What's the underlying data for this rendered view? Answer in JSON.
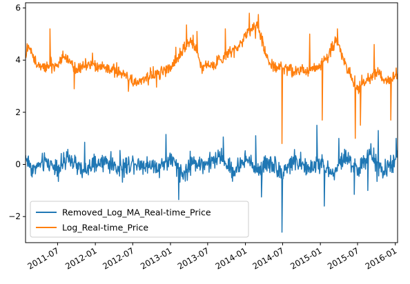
{
  "chart_data": {
    "type": "line",
    "title": "",
    "xlabel": "",
    "ylabel": "",
    "x_range": [
      "2011-01-26",
      "2016-01-12"
    ],
    "ylim": [
      -3.0,
      6.2
    ],
    "y_ticks": [
      -2,
      0,
      2,
      4,
      6
    ],
    "x_ticks": [
      "2011-07",
      "2012-01",
      "2012-07",
      "2013-01",
      "2013-07",
      "2014-01",
      "2014-07",
      "2015-01",
      "2015-07",
      "2016-01"
    ],
    "grid": false,
    "legend_position": "lower-left",
    "series": [
      {
        "name": "Removed_Log_MA_Real-time_Price",
        "color": "#1f77b4",
        "note": "noisy series fluctuating around 0 (mostly within -0.8..0.8, spikes to about -2.6 and 1.3)",
        "points": [
          [
            "2011-01-26",
            0.3
          ],
          [
            "2011-03-01",
            -0.2
          ],
          [
            "2011-05-01",
            0.1
          ],
          [
            "2011-07-01",
            -0.1
          ],
          [
            "2011-09-01",
            0.2
          ],
          [
            "2011-11-01",
            -0.3
          ],
          [
            "2012-01-01",
            0.0
          ],
          [
            "2012-03-01",
            0.1
          ],
          [
            "2012-05-01",
            -0.2
          ],
          [
            "2012-07-01",
            0.1
          ],
          [
            "2012-09-01",
            0.0
          ],
          [
            "2012-11-01",
            -0.1
          ],
          [
            "2013-01-01",
            0.2
          ],
          [
            "2013-03-01",
            -0.4
          ],
          [
            "2013-05-01",
            0.1
          ],
          [
            "2013-07-01",
            0.0
          ],
          [
            "2013-09-01",
            0.3
          ],
          [
            "2013-11-01",
            -0.3
          ],
          [
            "2014-01-01",
            0.2
          ],
          [
            "2014-03-01",
            -0.2
          ],
          [
            "2014-05-01",
            0.1
          ],
          [
            "2014-07-01",
            -0.3
          ],
          [
            "2014-09-01",
            0.2
          ],
          [
            "2014-11-01",
            -0.2
          ],
          [
            "2015-01-01",
            0.1
          ],
          [
            "2015-03-01",
            -0.4
          ],
          [
            "2015-05-01",
            0.3
          ],
          [
            "2015-07-01",
            -0.2
          ],
          [
            "2015-09-01",
            0.4
          ],
          [
            "2015-11-01",
            -0.3
          ],
          [
            "2016-01-12",
            0.2
          ]
        ],
        "spikes": [
          [
            "2011-11-10",
            0.85
          ],
          [
            "2012-12-10",
            1.15
          ],
          [
            "2013-02-10",
            -1.35
          ],
          [
            "2013-09-15",
            1.05
          ],
          [
            "2014-02-20",
            1.1
          ],
          [
            "2014-03-20",
            -1.25
          ],
          [
            "2014-06-28",
            -2.6
          ],
          [
            "2014-12-15",
            1.5
          ],
          [
            "2015-01-20",
            -1.6
          ],
          [
            "2015-04-01",
            1.0
          ],
          [
            "2015-06-15",
            -1.15
          ],
          [
            "2015-08-20",
            -1.0
          ],
          [
            "2015-10-10",
            1.3
          ],
          [
            "2016-01-05",
            1.0
          ]
        ]
      },
      {
        "name": "Log_Real-time_Price",
        "color": "#ff7f0e",
        "note": "noisy series around 3.5-4.5 with peaks near 5.8 in early 2014",
        "points": [
          [
            "2011-01-26",
            4.1
          ],
          [
            "2011-02-10",
            4.6
          ],
          [
            "2011-03-15",
            3.9
          ],
          [
            "2011-05-01",
            3.8
          ],
          [
            "2011-07-01",
            3.8
          ],
          [
            "2011-08-01",
            4.2
          ],
          [
            "2011-10-01",
            3.7
          ],
          [
            "2011-12-01",
            3.8
          ],
          [
            "2012-02-01",
            3.7
          ],
          [
            "2012-04-01",
            3.6
          ],
          [
            "2012-06-01",
            3.4
          ],
          [
            "2012-07-01",
            3.1
          ],
          [
            "2012-09-01",
            3.3
          ],
          [
            "2012-11-01",
            3.5
          ],
          [
            "2013-01-01",
            3.7
          ],
          [
            "2013-03-01",
            4.4
          ],
          [
            "2013-04-15",
            4.8
          ],
          [
            "2013-06-01",
            3.8
          ],
          [
            "2013-08-01",
            3.8
          ],
          [
            "2013-10-01",
            4.2
          ],
          [
            "2013-12-01",
            4.6
          ],
          [
            "2014-01-15",
            5.1
          ],
          [
            "2014-03-01",
            5.4
          ],
          [
            "2014-04-01",
            4.4
          ],
          [
            "2014-05-01",
            3.8
          ],
          [
            "2014-07-01",
            3.7
          ],
          [
            "2014-09-01",
            3.6
          ],
          [
            "2014-11-01",
            3.6
          ],
          [
            "2015-01-01",
            3.8
          ],
          [
            "2015-02-01",
            4.1
          ],
          [
            "2015-03-15",
            4.7
          ],
          [
            "2015-04-15",
            4.3
          ],
          [
            "2015-05-15",
            3.6
          ],
          [
            "2015-07-01",
            2.9
          ],
          [
            "2015-08-15",
            3.2
          ],
          [
            "2015-10-01",
            3.6
          ],
          [
            "2015-11-15",
            3.2
          ],
          [
            "2016-01-12",
            3.4
          ]
        ],
        "spikes": [
          [
            "2011-05-25",
            5.2
          ],
          [
            "2011-09-20",
            2.9
          ],
          [
            "2012-06-10",
            2.8
          ],
          [
            "2013-03-20",
            5.35
          ],
          [
            "2013-05-10",
            5.1
          ],
          [
            "2013-09-25",
            5.2
          ],
          [
            "2014-01-20",
            5.8
          ],
          [
            "2014-03-05",
            5.75
          ],
          [
            "2014-06-28",
            0.8
          ],
          [
            "2014-11-10",
            5.0
          ],
          [
            "2015-01-10",
            1.7
          ],
          [
            "2015-03-25",
            5.2
          ],
          [
            "2015-06-20",
            1.0
          ],
          [
            "2015-07-15",
            1.5
          ],
          [
            "2015-09-20",
            4.6
          ],
          [
            "2015-12-10",
            1.7
          ],
          [
            "2016-01-05",
            3.7
          ]
        ]
      }
    ]
  }
}
